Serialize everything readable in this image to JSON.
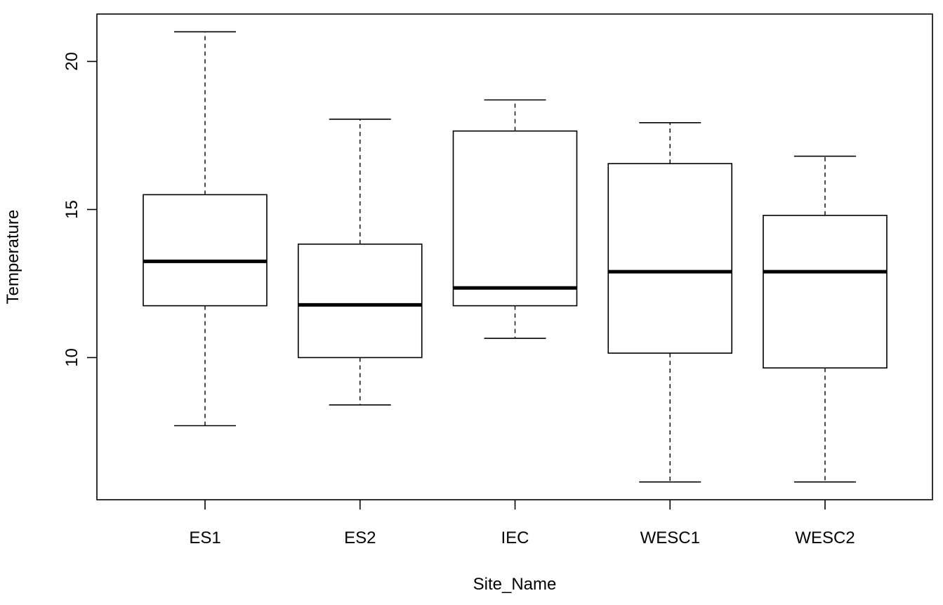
{
  "chart_data": {
    "type": "boxplot",
    "title": "",
    "xlabel": "Site_Name",
    "ylabel": "Temperature",
    "ylim": [
      5.2,
      21.6
    ],
    "yticks": [
      10,
      15,
      20
    ],
    "grid": false,
    "categories": [
      "ES1",
      "ES2",
      "IEC",
      "WESC1",
      "WESC2"
    ],
    "boxes": [
      {
        "name": "ES1",
        "min": 7.7,
        "q1": 11.75,
        "median": 13.25,
        "q3": 15.5,
        "max": 21.0
      },
      {
        "name": "ES2",
        "min": 8.4,
        "q1": 10.0,
        "median": 11.78,
        "q3": 13.83,
        "max": 18.05
      },
      {
        "name": "IEC",
        "min": 10.65,
        "q1": 11.75,
        "median": 12.35,
        "q3": 17.65,
        "max": 18.7
      },
      {
        "name": "WESC1",
        "min": 5.8,
        "q1": 10.15,
        "median": 12.9,
        "q3": 16.55,
        "max": 17.93
      },
      {
        "name": "WESC2",
        "min": 5.8,
        "q1": 9.65,
        "median": 12.9,
        "q3": 14.8,
        "max": 16.8
      }
    ]
  }
}
